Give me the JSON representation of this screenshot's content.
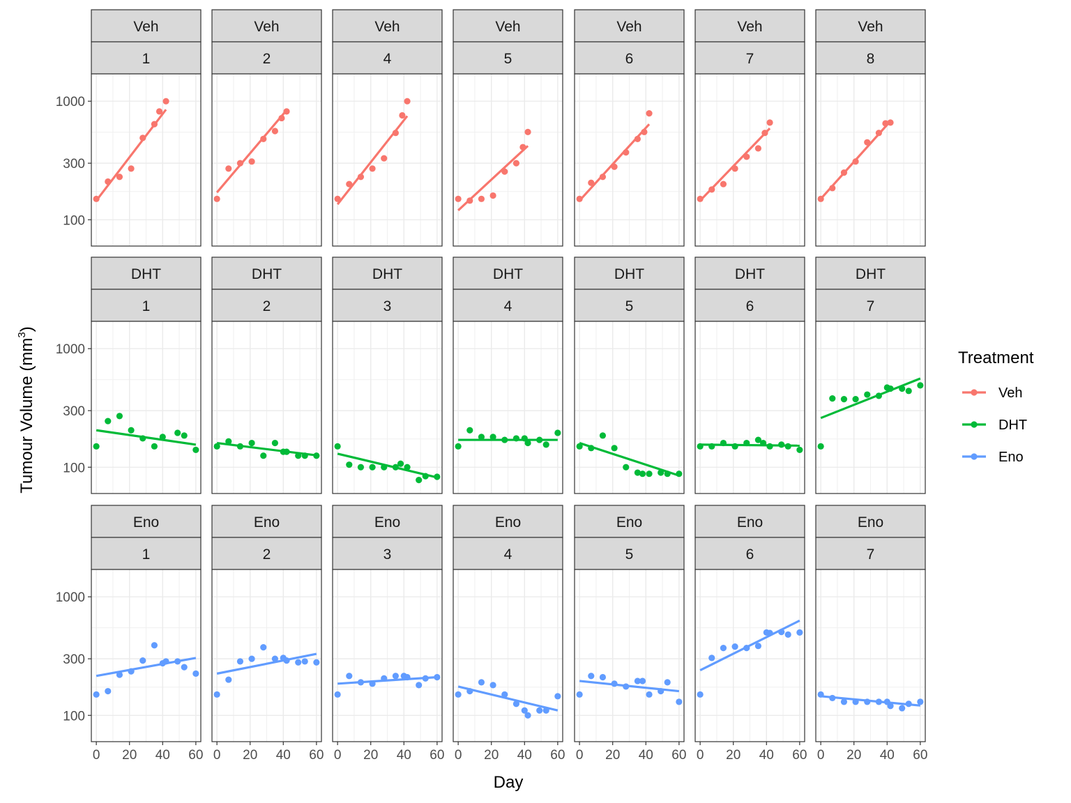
{
  "chart_data": {
    "type": "scatter",
    "layout": "faceted grid, 3 rows x 7 columns",
    "y_scale": "log10",
    "ylim": [
      60,
      1700
    ],
    "xlim": [
      -3,
      63
    ],
    "y_ticks": [
      100,
      300,
      1000
    ],
    "y_tick_labels": [
      "100",
      "300",
      "1000"
    ],
    "x_ticks": [
      0,
      20,
      40,
      60
    ],
    "x_tick_labels": [
      "0",
      "20",
      "40",
      "60"
    ],
    "xlabel": "Day",
    "ylabel": {
      "prefix": "Tumour Volume (",
      "unit": "mm",
      "sup": "3",
      "suffix": ")"
    },
    "grid": true,
    "legend": {
      "title": "Treatment",
      "placement": "right",
      "entries": [
        {
          "name": "Veh",
          "color": "#F8766D"
        },
        {
          "name": "DHT",
          "color": "#00BA38"
        },
        {
          "name": "Eno",
          "color": "#619CFF"
        }
      ]
    },
    "panels": [
      {
        "treatment": "Veh",
        "id": "1",
        "color": "#F8766D",
        "fit": [
          [
            0,
            145
          ],
          [
            42,
            850
          ]
        ],
        "points": [
          [
            0,
            150
          ],
          [
            7,
            210
          ],
          [
            14,
            230
          ],
          [
            21,
            270
          ],
          [
            28,
            490
          ],
          [
            35,
            640
          ],
          [
            38,
            820
          ],
          [
            42,
            1000
          ]
        ]
      },
      {
        "treatment": "Veh",
        "id": "2",
        "color": "#F8766D",
        "fit": [
          [
            0,
            170
          ],
          [
            42,
            840
          ]
        ],
        "points": [
          [
            0,
            150
          ],
          [
            7,
            270
          ],
          [
            14,
            300
          ],
          [
            21,
            310
          ],
          [
            28,
            480
          ],
          [
            35,
            560
          ],
          [
            39,
            720
          ],
          [
            42,
            820
          ]
        ]
      },
      {
        "treatment": "Veh",
        "id": "4",
        "color": "#F8766D",
        "fit": [
          [
            0,
            135
          ],
          [
            42,
            750
          ]
        ],
        "points": [
          [
            0,
            150
          ],
          [
            7,
            200
          ],
          [
            14,
            230
          ],
          [
            21,
            270
          ],
          [
            28,
            330
          ],
          [
            35,
            540
          ],
          [
            39,
            760
          ],
          [
            42,
            1000
          ]
        ]
      },
      {
        "treatment": "Veh",
        "id": "5",
        "color": "#F8766D",
        "fit": [
          [
            0,
            120
          ],
          [
            42,
            420
          ]
        ],
        "points": [
          [
            0,
            150
          ],
          [
            7,
            145
          ],
          [
            14,
            150
          ],
          [
            21,
            160
          ],
          [
            28,
            255
          ],
          [
            35,
            300
          ],
          [
            39,
            410
          ],
          [
            42,
            550
          ]
        ]
      },
      {
        "treatment": "Veh",
        "id": "6",
        "color": "#F8766D",
        "fit": [
          [
            0,
            145
          ],
          [
            42,
            640
          ]
        ],
        "points": [
          [
            0,
            150
          ],
          [
            7,
            205
          ],
          [
            14,
            230
          ],
          [
            21,
            280
          ],
          [
            28,
            370
          ],
          [
            35,
            480
          ],
          [
            39,
            550
          ],
          [
            42,
            790
          ]
        ]
      },
      {
        "treatment": "Veh",
        "id": "7",
        "color": "#F8766D",
        "fit": [
          [
            0,
            145
          ],
          [
            42,
            590
          ]
        ],
        "points": [
          [
            0,
            150
          ],
          [
            7,
            180
          ],
          [
            14,
            200
          ],
          [
            21,
            270
          ],
          [
            28,
            340
          ],
          [
            35,
            400
          ],
          [
            39,
            540
          ],
          [
            42,
            660
          ]
        ]
      },
      {
        "treatment": "Veh",
        "id": "8",
        "color": "#F8766D",
        "fit": [
          [
            0,
            150
          ],
          [
            42,
            680
          ]
        ],
        "points": [
          [
            0,
            150
          ],
          [
            7,
            185
          ],
          [
            14,
            250
          ],
          [
            21,
            310
          ],
          [
            28,
            450
          ],
          [
            35,
            540
          ],
          [
            39,
            650
          ],
          [
            42,
            660
          ]
        ]
      },
      {
        "treatment": "DHT",
        "id": "1",
        "color": "#00BA38",
        "fit": [
          [
            0,
            205
          ],
          [
            60,
            155
          ]
        ],
        "points": [
          [
            0,
            150
          ],
          [
            7,
            245
          ],
          [
            14,
            270
          ],
          [
            21,
            205
          ],
          [
            28,
            175
          ],
          [
            35,
            150
          ],
          [
            40,
            180
          ],
          [
            49,
            195
          ],
          [
            53,
            185
          ],
          [
            60,
            140
          ]
        ]
      },
      {
        "treatment": "DHT",
        "id": "2",
        "color": "#00BA38",
        "fit": [
          [
            0,
            160
          ],
          [
            60,
            126
          ]
        ],
        "points": [
          [
            0,
            150
          ],
          [
            7,
            165
          ],
          [
            14,
            150
          ],
          [
            21,
            160
          ],
          [
            28,
            125
          ],
          [
            35,
            160
          ],
          [
            40,
            135
          ],
          [
            42,
            135
          ],
          [
            49,
            125
          ],
          [
            53,
            125
          ],
          [
            60,
            125
          ]
        ]
      },
      {
        "treatment": "DHT",
        "id": "3",
        "color": "#00BA38",
        "fit": [
          [
            0,
            130
          ],
          [
            60,
            82
          ]
        ],
        "points": [
          [
            0,
            150
          ],
          [
            7,
            105
          ],
          [
            14,
            100
          ],
          [
            21,
            100
          ],
          [
            28,
            100
          ],
          [
            35,
            100
          ],
          [
            38,
            107
          ],
          [
            42,
            100
          ],
          [
            49,
            78
          ],
          [
            53,
            84
          ],
          [
            60,
            83
          ]
        ]
      },
      {
        "treatment": "DHT",
        "id": "4",
        "color": "#00BA38",
        "fit": [
          [
            0,
            170
          ],
          [
            60,
            170
          ]
        ],
        "points": [
          [
            0,
            150
          ],
          [
            7,
            205
          ],
          [
            14,
            180
          ],
          [
            21,
            180
          ],
          [
            28,
            170
          ],
          [
            35,
            175
          ],
          [
            40,
            175
          ],
          [
            42,
            160
          ],
          [
            49,
            170
          ],
          [
            53,
            155
          ],
          [
            60,
            195
          ]
        ]
      },
      {
        "treatment": "DHT",
        "id": "5",
        "color": "#00BA38",
        "fit": [
          [
            0,
            160
          ],
          [
            60,
            85
          ]
        ],
        "points": [
          [
            0,
            150
          ],
          [
            7,
            145
          ],
          [
            14,
            185
          ],
          [
            21,
            145
          ],
          [
            28,
            100
          ],
          [
            35,
            90
          ],
          [
            38,
            88
          ],
          [
            42,
            88
          ],
          [
            49,
            90
          ],
          [
            53,
            88
          ],
          [
            60,
            88
          ]
        ]
      },
      {
        "treatment": "DHT",
        "id": "6",
        "color": "#00BA38",
        "fit": [
          [
            0,
            155
          ],
          [
            60,
            152
          ]
        ],
        "points": [
          [
            0,
            150
          ],
          [
            7,
            150
          ],
          [
            14,
            160
          ],
          [
            21,
            150
          ],
          [
            28,
            160
          ],
          [
            35,
            170
          ],
          [
            38,
            160
          ],
          [
            42,
            150
          ],
          [
            49,
            155
          ],
          [
            53,
            150
          ],
          [
            60,
            140
          ]
        ]
      },
      {
        "treatment": "DHT",
        "id": "7",
        "color": "#00BA38",
        "fit": [
          [
            0,
            260
          ],
          [
            60,
            560
          ]
        ],
        "points": [
          [
            0,
            150
          ],
          [
            7,
            380
          ],
          [
            14,
            375
          ],
          [
            21,
            375
          ],
          [
            28,
            410
          ],
          [
            35,
            400
          ],
          [
            40,
            470
          ],
          [
            42,
            460
          ],
          [
            49,
            460
          ],
          [
            53,
            440
          ],
          [
            60,
            490
          ]
        ]
      },
      {
        "treatment": "Eno",
        "id": "1",
        "color": "#619CFF",
        "fit": [
          [
            0,
            215
          ],
          [
            60,
            305
          ]
        ],
        "points": [
          [
            0,
            150
          ],
          [
            7,
            160
          ],
          [
            14,
            220
          ],
          [
            21,
            235
          ],
          [
            28,
            290
          ],
          [
            35,
            390
          ],
          [
            40,
            275
          ],
          [
            42,
            285
          ],
          [
            49,
            285
          ],
          [
            53,
            255
          ],
          [
            60,
            225
          ]
        ]
      },
      {
        "treatment": "Eno",
        "id": "2",
        "color": "#619CFF",
        "fit": [
          [
            0,
            225
          ],
          [
            60,
            330
          ]
        ],
        "points": [
          [
            0,
            150
          ],
          [
            7,
            200
          ],
          [
            14,
            285
          ],
          [
            21,
            300
          ],
          [
            28,
            375
          ],
          [
            35,
            300
          ],
          [
            40,
            305
          ],
          [
            42,
            290
          ],
          [
            49,
            280
          ],
          [
            53,
            285
          ],
          [
            60,
            280
          ]
        ]
      },
      {
        "treatment": "Eno",
        "id": "3",
        "color": "#619CFF",
        "fit": [
          [
            0,
            185
          ],
          [
            60,
            210
          ]
        ],
        "points": [
          [
            0,
            150
          ],
          [
            7,
            215
          ],
          [
            14,
            190
          ],
          [
            21,
            185
          ],
          [
            28,
            205
          ],
          [
            35,
            215
          ],
          [
            40,
            215
          ],
          [
            42,
            210
          ],
          [
            49,
            180
          ],
          [
            53,
            205
          ],
          [
            60,
            210
          ]
        ]
      },
      {
        "treatment": "Eno",
        "id": "4",
        "color": "#619CFF",
        "fit": [
          [
            0,
            175
          ],
          [
            60,
            110
          ]
        ],
        "points": [
          [
            0,
            150
          ],
          [
            7,
            160
          ],
          [
            14,
            190
          ],
          [
            21,
            180
          ],
          [
            28,
            150
          ],
          [
            35,
            125
          ],
          [
            40,
            110
          ],
          [
            42,
            100
          ],
          [
            49,
            110
          ],
          [
            53,
            110
          ],
          [
            60,
            145
          ]
        ]
      },
      {
        "treatment": "Eno",
        "id": "5",
        "color": "#619CFF",
        "fit": [
          [
            0,
            195
          ],
          [
            60,
            160
          ]
        ],
        "points": [
          [
            0,
            150
          ],
          [
            7,
            215
          ],
          [
            14,
            210
          ],
          [
            21,
            185
          ],
          [
            28,
            175
          ],
          [
            35,
            195
          ],
          [
            38,
            195
          ],
          [
            42,
            150
          ],
          [
            49,
            160
          ],
          [
            53,
            190
          ],
          [
            60,
            130
          ]
        ]
      },
      {
        "treatment": "Eno",
        "id": "6",
        "color": "#619CFF",
        "fit": [
          [
            0,
            240
          ],
          [
            60,
            630
          ]
        ],
        "points": [
          [
            0,
            150
          ],
          [
            7,
            305
          ],
          [
            14,
            370
          ],
          [
            21,
            380
          ],
          [
            28,
            370
          ],
          [
            35,
            385
          ],
          [
            40,
            500
          ],
          [
            42,
            495
          ],
          [
            49,
            505
          ],
          [
            53,
            480
          ],
          [
            60,
            500
          ]
        ]
      },
      {
        "treatment": "Eno",
        "id": "7",
        "color": "#619CFF",
        "fit": [
          [
            0,
            145
          ],
          [
            60,
            121
          ]
        ],
        "points": [
          [
            0,
            150
          ],
          [
            7,
            140
          ],
          [
            14,
            130
          ],
          [
            21,
            130
          ],
          [
            28,
            130
          ],
          [
            35,
            130
          ],
          [
            40,
            130
          ],
          [
            42,
            120
          ],
          [
            49,
            115
          ],
          [
            53,
            125
          ],
          [
            60,
            130
          ]
        ]
      }
    ]
  }
}
